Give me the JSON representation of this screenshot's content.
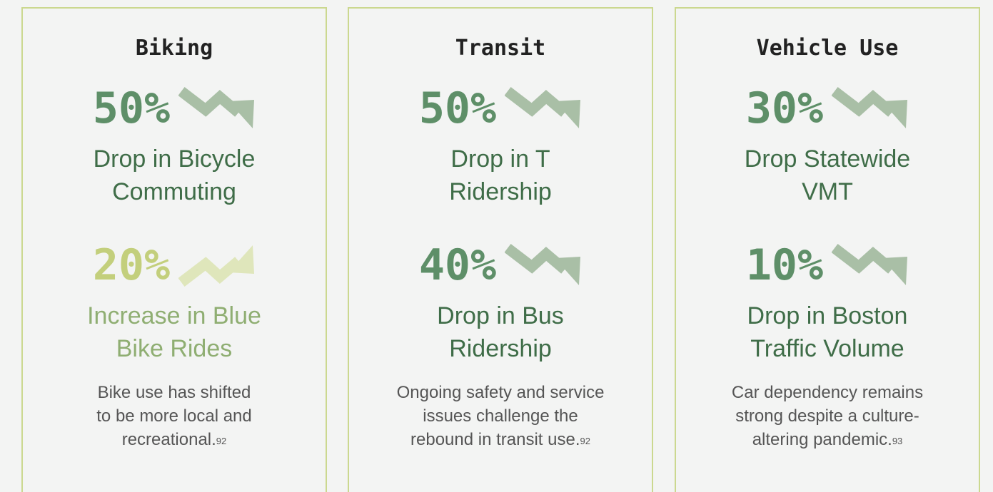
{
  "cards": [
    {
      "title": "Biking",
      "stats": [
        {
          "value": "50%",
          "trend": "down",
          "label": [
            "Drop in Bicycle",
            "Commuting"
          ]
        },
        {
          "value": "20%",
          "trend": "up",
          "label": [
            "Increase in Blue",
            "Bike Rides"
          ]
        }
      ],
      "note": [
        "Bike use has shifted",
        "to be more local and",
        "recreational."
      ],
      "ref": "92"
    },
    {
      "title": "Transit",
      "stats": [
        {
          "value": "50%",
          "trend": "down",
          "label": [
            "Drop in T",
            "Ridership"
          ]
        },
        {
          "value": "40%",
          "trend": "down",
          "label": [
            "Drop in Bus",
            "Ridership"
          ]
        }
      ],
      "note": [
        "Ongoing safety and service",
        "issues challenge the",
        "rebound in transit use."
      ],
      "ref": "92"
    },
    {
      "title": "Vehicle Use",
      "stats": [
        {
          "value": "30%",
          "trend": "down",
          "label": [
            "Drop Statewide",
            "VMT"
          ]
        },
        {
          "value": "10%",
          "trend": "down",
          "label": [
            "Drop in Boston",
            "Traffic Volume"
          ]
        }
      ],
      "note": [
        "Car dependency remains",
        "strong despite a culture-",
        "altering pandemic."
      ],
      "ref": "93"
    }
  ]
}
